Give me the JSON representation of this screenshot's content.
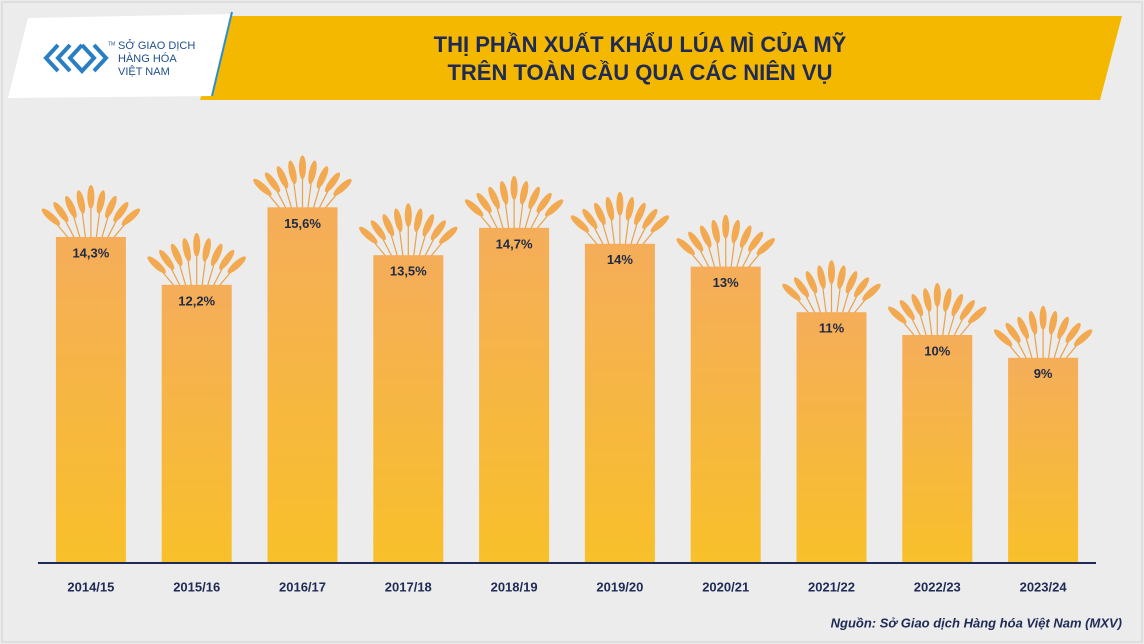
{
  "logo": {
    "lines": [
      "SỞ GIAO DỊCH",
      "HÀNG HÓA",
      "VIỆT NAM"
    ],
    "mark": "TM"
  },
  "chart_data": {
    "type": "bar",
    "title": [
      "THỊ PHẦN XUẤT KHẨU LÚA MÌ CỦA MỸ",
      "TRÊN TOÀN CẦU QUA CÁC NIÊN VỤ"
    ],
    "categories": [
      "2014/15",
      "2015/16",
      "2016/17",
      "2017/18",
      "2018/19",
      "2019/20",
      "2020/21",
      "2021/22",
      "2022/23",
      "2023/24"
    ],
    "values": [
      14.3,
      12.2,
      15.6,
      13.5,
      14.7,
      14,
      13,
      11,
      10,
      9
    ],
    "value_labels": [
      "14,3%",
      "12,2%",
      "15,6%",
      "13,5%",
      "14,7%",
      "14%",
      "13%",
      "11%",
      "10%",
      "9%"
    ],
    "color": "#f5ad5a",
    "ylim": [
      0,
      20
    ],
    "source": "Nguồn: Sở Giao dịch Hàng hóa Việt Nam (MXV)"
  }
}
